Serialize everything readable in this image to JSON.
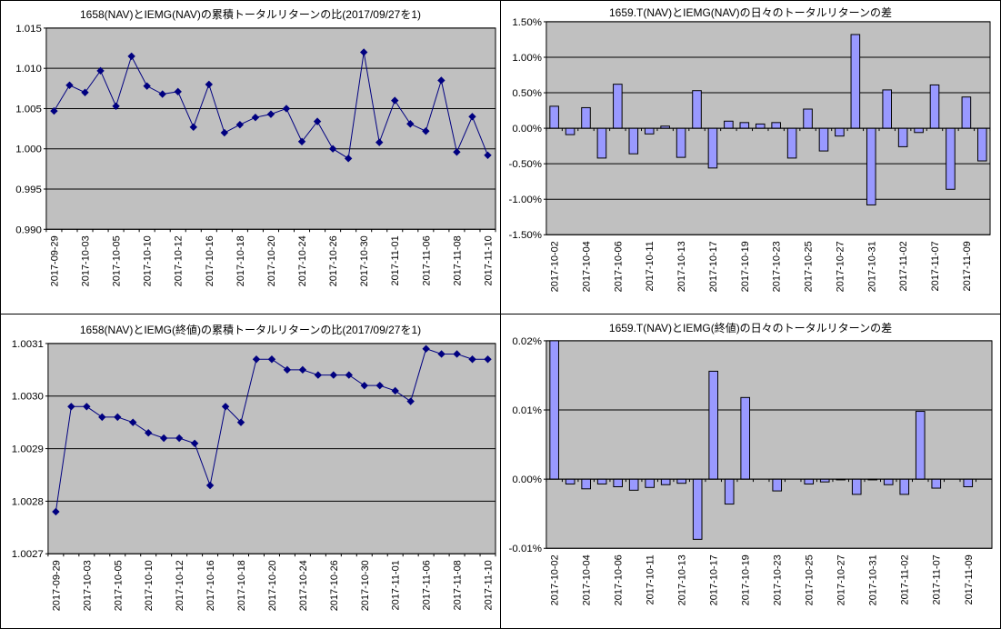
{
  "colors": {
    "plot_background": "#C0C0C0",
    "gridline": "#000000",
    "line_series": "#000080",
    "bar_fill": "#9999FF",
    "bar_stroke": "#000000",
    "axis_text": "#000000"
  },
  "chart_data": [
    {
      "type": "line",
      "title": "1658(NAV)とIEMG(NAV)の累積トータルリターンの比(2017/09/27を1)",
      "categories": [
        "2017-09-29",
        "2017-10-02",
        "2017-10-03",
        "2017-10-04",
        "2017-10-05",
        "2017-10-06",
        "2017-10-10",
        "2017-10-11",
        "2017-10-12",
        "2017-10-13",
        "2017-10-16",
        "2017-10-17",
        "2017-10-18",
        "2017-10-19",
        "2017-10-20",
        "2017-10-23",
        "2017-10-24",
        "2017-10-25",
        "2017-10-26",
        "2017-10-27",
        "2017-10-30",
        "2017-10-31",
        "2017-11-01",
        "2017-11-02",
        "2017-11-06",
        "2017-11-07",
        "2017-11-08",
        "2017-11-09",
        "2017-11-10"
      ],
      "values": [
        1.0047,
        1.0079,
        1.007,
        1.0097,
        1.0053,
        1.0115,
        1.0078,
        1.0068,
        1.0071,
        1.0027,
        1.008,
        1.002,
        1.003,
        1.0039,
        1.0043,
        1.005,
        1.0009,
        1.0034,
        1.0,
        0.9988,
        1.012,
        1.0008,
        1.006,
        1.0031,
        1.0022,
        1.0085,
        0.9996,
        1.004,
        0.9992
      ],
      "ylim": [
        0.99,
        1.015
      ],
      "ytick_labels": [
        "1.015",
        "1.010",
        "1.005",
        "1.000",
        "0.995",
        "0.990"
      ],
      "ytick_values": [
        1.015,
        1.01,
        1.005,
        1.0,
        0.995,
        0.99
      ],
      "label_every": 2,
      "grid": true,
      "legend": "none"
    },
    {
      "type": "bar",
      "title": "1659.T(NAV)とIEMG(NAV)の日々のトータルリターンの差",
      "categories": [
        "2017-10-02",
        "2017-10-03",
        "2017-10-04",
        "2017-10-05",
        "2017-10-06",
        "2017-10-10",
        "2017-10-11",
        "2017-10-12",
        "2017-10-13",
        "2017-10-16",
        "2017-10-17",
        "2017-10-18",
        "2017-10-19",
        "2017-10-20",
        "2017-10-23",
        "2017-10-24",
        "2017-10-25",
        "2017-10-26",
        "2017-10-27",
        "2017-10-30",
        "2017-10-31",
        "2017-11-01",
        "2017-11-02",
        "2017-11-06",
        "2017-11-07",
        "2017-11-08",
        "2017-11-09",
        "2017-11-10"
      ],
      "values": [
        0.31,
        -0.09,
        0.29,
        -0.42,
        0.62,
        -0.36,
        -0.08,
        0.03,
        -0.41,
        0.53,
        -0.56,
        0.1,
        0.08,
        0.06,
        0.08,
        -0.42,
        0.27,
        -0.32,
        -0.11,
        1.32,
        -1.08,
        0.54,
        -0.26,
        -0.06,
        0.61,
        -0.86,
        0.44,
        -0.46
      ],
      "unit": "%",
      "ylim": [
        -1.5,
        1.5
      ],
      "ytick_labels": [
        "1.50%",
        "1.00%",
        "0.50%",
        "0.00%",
        "-0.50%",
        "-1.00%",
        "-1.50%"
      ],
      "ytick_values": [
        1.5,
        1.0,
        0.5,
        0.0,
        -0.5,
        -1.0,
        -1.5
      ],
      "label_every": 2,
      "grid": true,
      "legend": "none"
    },
    {
      "type": "line",
      "title": "1658(NAV)とIEMG(終値)の累積トータルリターンの比(2017/09/27を1)",
      "categories": [
        "2017-09-29",
        "2017-10-02",
        "2017-10-03",
        "2017-10-04",
        "2017-10-05",
        "2017-10-06",
        "2017-10-10",
        "2017-10-11",
        "2017-10-12",
        "2017-10-13",
        "2017-10-16",
        "2017-10-17",
        "2017-10-18",
        "2017-10-19",
        "2017-10-20",
        "2017-10-23",
        "2017-10-24",
        "2017-10-25",
        "2017-10-26",
        "2017-10-27",
        "2017-10-30",
        "2017-10-31",
        "2017-11-01",
        "2017-11-02",
        "2017-11-06",
        "2017-11-07",
        "2017-11-08",
        "2017-11-09",
        "2017-11-10"
      ],
      "values": [
        1.00278,
        1.00298,
        1.00298,
        1.00296,
        1.00296,
        1.00295,
        1.00293,
        1.00292,
        1.00292,
        1.00291,
        1.00283,
        1.00298,
        1.00295,
        1.00307,
        1.00307,
        1.00305,
        1.00305,
        1.00304,
        1.00304,
        1.00304,
        1.00302,
        1.00302,
        1.00301,
        1.00299,
        1.00309,
        1.00308,
        1.00308,
        1.00307,
        1.00307
      ],
      "ylim": [
        1.0027,
        1.0031
      ],
      "ytick_labels": [
        "1.0031",
        "1.0030",
        "1.0029",
        "1.0028",
        "1.0027"
      ],
      "ytick_values": [
        1.0031,
        1.003,
        1.0029,
        1.0028,
        1.0027
      ],
      "label_every": 2,
      "grid": true,
      "legend": "none"
    },
    {
      "type": "bar",
      "title": "1659.T(NAV)とIEMG(終値)の日々のトータルリターンの差",
      "categories": [
        "2017-10-02",
        "2017-10-03",
        "2017-10-04",
        "2017-10-05",
        "2017-10-06",
        "2017-10-10",
        "2017-10-11",
        "2017-10-12",
        "2017-10-13",
        "2017-10-16",
        "2017-10-17",
        "2017-10-18",
        "2017-10-19",
        "2017-10-20",
        "2017-10-23",
        "2017-10-24",
        "2017-10-25",
        "2017-10-26",
        "2017-10-27",
        "2017-10-30",
        "2017-10-31",
        "2017-11-01",
        "2017-11-02",
        "2017-11-06",
        "2017-11-07",
        "2017-11-08",
        "2017-11-09",
        "2017-11-10"
      ],
      "values": [
        0.02,
        -0.0007,
        -0.0014,
        -0.0007,
        -0.0011,
        -0.0016,
        -0.0012,
        -0.0008,
        -0.0006,
        -0.0087,
        0.0156,
        -0.0036,
        0.0118,
        0.0,
        -0.0017,
        0.0,
        -0.0007,
        -0.0004,
        -0.0001,
        -0.0022,
        -0.0001,
        -0.0008,
        -0.0022,
        0.0098,
        -0.0013,
        0.0,
        -0.0011,
        0.0
      ],
      "unit": "%",
      "ylim": [
        -0.01,
        0.02
      ],
      "ytick_labels": [
        "0.02%",
        "0.01%",
        "0.00%",
        "-0.01%"
      ],
      "ytick_values": [
        0.02,
        0.01,
        0.0,
        -0.01
      ],
      "label_every": 2,
      "grid": true,
      "legend": "none"
    }
  ]
}
